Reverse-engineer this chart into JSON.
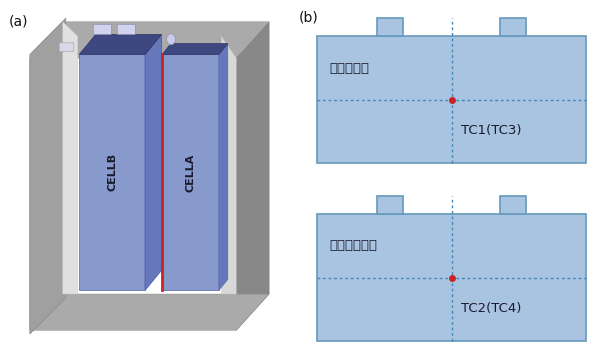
{
  "fig_width": 5.98,
  "fig_height": 3.63,
  "bg_color": "#ffffff",
  "label_a": "(a)",
  "label_b": "(b)",
  "cell_color": "#8899cc",
  "cell_top_color": "#3d4880",
  "cell_side_color": "#6677bb",
  "plate_dark": "#707070",
  "plate_mid": "#909090",
  "plate_light": "#c8c8c8",
  "red_line_color": "#cc2222",
  "battery_blue": "#a8c4e0",
  "dashed_color": "#4488bb",
  "dot_color": "#cc2222",
  "text_color": "#1a1a2e",
  "tc1_label": "TC1(TC3)",
  "tc2_label": "TC2(TC4)",
  "top_label": "电池加热面",
  "bot_label": "电池非加热面",
  "cell_a_label": "CELLA",
  "cell_b_label": "CELLB"
}
